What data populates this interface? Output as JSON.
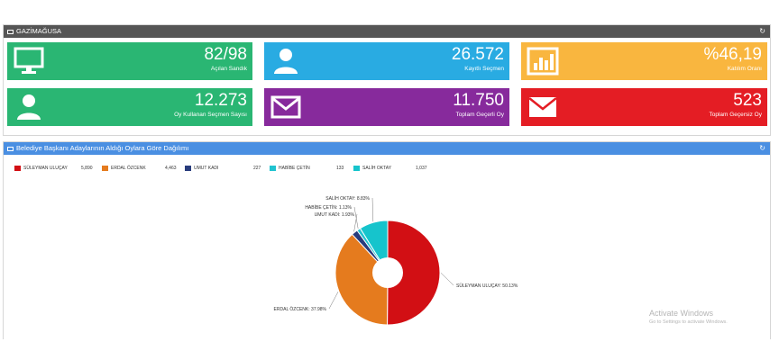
{
  "summary_panel": {
    "title": "GAZİMAĞUSA"
  },
  "tiles": [
    {
      "value": "82/98",
      "label": "Açılan Sandık",
      "color": "#2ab673",
      "icon": "monitor-icon"
    },
    {
      "value": "26.572",
      "label": "Kayıtlı Seçmen",
      "color": "#29abe2",
      "icon": "user-icon"
    },
    {
      "value": "%46,19",
      "label": "Katılım Oranı",
      "color": "#f9b63f",
      "icon": "bar-chart-icon"
    },
    {
      "value": "12.273",
      "label": "Oy Kullanan Seçmen Sayısı",
      "color": "#2ab673",
      "icon": "user-icon"
    },
    {
      "value": "11.750",
      "label": "Toplam Geçerli Oy",
      "color": "#872a9c",
      "icon": "envelope-icon"
    },
    {
      "value": "523",
      "label": "Toplam Geçersiz Oy",
      "color": "#e41d24",
      "icon": "envelope-icon"
    }
  ],
  "chart_panel": {
    "title": "Belediye Başkanı Adaylarının Aldığı Oylara Göre Dağılımı"
  },
  "chart_data": {
    "type": "pie",
    "title": "Belediye Başkanı Adaylarının Aldığı Oylara Göre Dağılımı",
    "legend_position": "top-left",
    "series": [
      {
        "name": "SÜLEYMAN ULUÇAY",
        "value": 5890,
        "value_label": "5,890",
        "percent_label": "SÜLEYMAN ULUÇAY: 50.13%",
        "color": "#d20f14"
      },
      {
        "name": "ERDAL ÖZCENK",
        "value": 4463,
        "value_label": "4,463",
        "percent_label": "ERDAL ÖZCENK: 37.98%",
        "color": "#e57b1e"
      },
      {
        "name": "UMUT KADI",
        "value": 227,
        "value_label": "227",
        "percent_label": "UMUT KADI: 1.93%",
        "color": "#283c7c"
      },
      {
        "name": "HABİBE ÇETİN",
        "value": 133,
        "value_label": "133",
        "percent_label": "HABİBE ÇETİN: 1.13%",
        "color": "#21c3d0"
      },
      {
        "name": "SALİH OKTAY",
        "value": 1037,
        "value_label": "1,037",
        "percent_label": "SALİH OKTAY: 8.83%",
        "color": "#16c4cc"
      }
    ]
  },
  "watermark": {
    "line1": "Activate Windows",
    "line2": "Go to Settings to activate Windows."
  }
}
